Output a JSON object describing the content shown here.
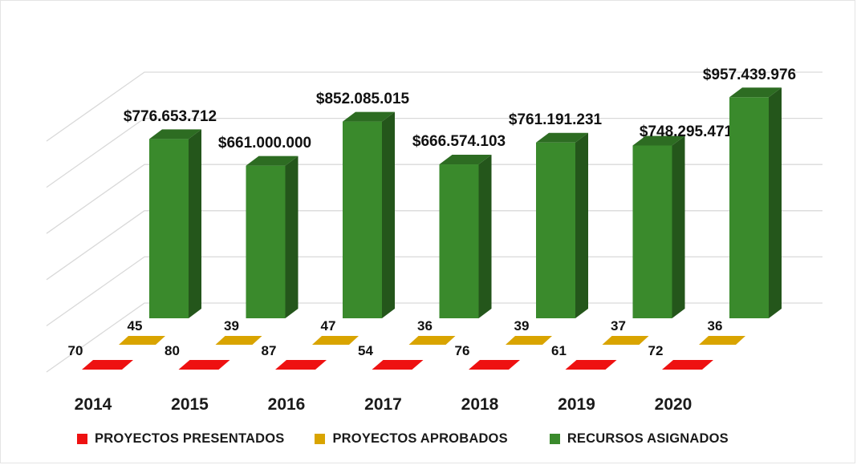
{
  "colors": {
    "presentados": "#ee1111",
    "aprobados": "#d9a400",
    "recursos": "#3a8a2c",
    "grid": "#d9d9d9"
  },
  "legend": {
    "presentados": "PROYECTOS PRESENTADOS",
    "aprobados": "PROYECTOS APROBADOS",
    "recursos": "RECURSOS ASIGNADOS"
  },
  "chart_data": {
    "type": "bar",
    "subtype": "3d-clustered",
    "title": "",
    "grid": true,
    "legend_position": "bottom",
    "categories": [
      "2014",
      "2015",
      "2016",
      "2017",
      "2018",
      "2019",
      "2020"
    ],
    "series": [
      {
        "name": "PROYECTOS PRESENTADOS",
        "values": [
          70,
          80,
          87,
          54,
          76,
          61,
          72
        ]
      },
      {
        "name": "PROYECTOS APROBADOS",
        "values": [
          45,
          39,
          47,
          36,
          39,
          37,
          36
        ]
      },
      {
        "name": "RECURSOS ASIGNADOS",
        "values": [
          776653712,
          661000000,
          852085015,
          666574103,
          761191231,
          748295471,
          957439976
        ],
        "labels": [
          "$776.653.712",
          "$661.000.000",
          "$852.085.015",
          "$666.574.103",
          "$761.191.231",
          "$748.295.471",
          "$957.439.976"
        ]
      }
    ]
  }
}
